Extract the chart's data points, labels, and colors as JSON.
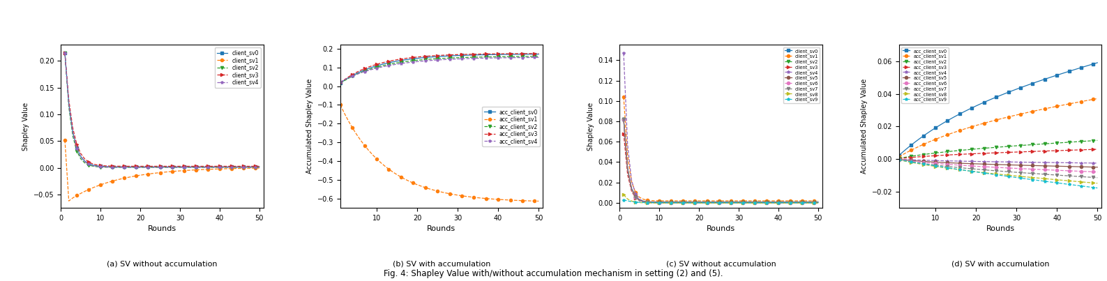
{
  "fig_width": 15.87,
  "fig_height": 4.03,
  "fig_caption": "Fig. 4: Shapley Value with/without accumulation mechanism in setting (2) and (5).",
  "panel_a": {
    "ylabel": "Shapley Value",
    "xlabel": "Rounds",
    "ylim": [
      -0.075,
      0.23
    ],
    "xlim": [
      0,
      51
    ],
    "clients": [
      "client_sv0",
      "client_sv1",
      "client_sv2",
      "client_sv3",
      "client_sv4"
    ],
    "colors": [
      "#1f77b4",
      "#ff7f0e",
      "#2ca02c",
      "#d62728",
      "#9467bd"
    ],
    "markers": [
      "s",
      "o",
      "v",
      ">",
      "*"
    ],
    "linestyles": [
      "-",
      "--",
      "--",
      "--",
      "--"
    ],
    "label": "(a) SV without accumulation"
  },
  "panel_b": {
    "ylabel": "Accumulated Shapley Value",
    "xlabel": "Rounds",
    "ylim": [
      -0.65,
      0.22
    ],
    "xlim": [
      1,
      51
    ],
    "clients": [
      "acc_client_sv0",
      "acc_client_sv1",
      "acc_client_sv2",
      "acc_client_sv3",
      "acc_client_sv4"
    ],
    "colors": [
      "#1f77b4",
      "#ff7f0e",
      "#2ca02c",
      "#d62728",
      "#9467bd"
    ],
    "markers": [
      "s",
      "o",
      "v",
      ">",
      "*"
    ],
    "linestyles": [
      "-",
      "--",
      "--",
      "--",
      "--"
    ],
    "label": "(b) SV with accumulation"
  },
  "panel_c": {
    "ylabel": "Shapley Value",
    "xlabel": "Rounds",
    "ylim": [
      -0.005,
      0.155
    ],
    "xlim": [
      0,
      51
    ],
    "clients": [
      "client_sv0",
      "client_sv1",
      "client_sv2",
      "client_sv3",
      "client_sv4",
      "client_sv5",
      "client_sv6",
      "client_sv7",
      "client_sv8",
      "client_sv9"
    ],
    "colors": [
      "#1f77b4",
      "#ff7f0e",
      "#2ca02c",
      "#d62728",
      "#9467bd",
      "#8c564b",
      "#e377c2",
      "#7f7f7f",
      "#bcbd22",
      "#17becf"
    ],
    "markers": [
      "s",
      "o",
      "v",
      ">",
      "*",
      "o",
      "o",
      "v",
      ">",
      "*"
    ],
    "linestyles": [
      "-",
      "--",
      "--",
      "--",
      "--",
      "-",
      "--",
      "--",
      "--",
      "--"
    ],
    "label": "(c) SV without accumulation"
  },
  "panel_d": {
    "ylabel": "Accumulated Shapley Value",
    "xlabel": "Rounds",
    "ylim": [
      -0.03,
      0.07
    ],
    "xlim": [
      1,
      51
    ],
    "clients": [
      "acc_client_sv0",
      "acc_client_sv1",
      "acc_client_sv2",
      "acc_client_sv3",
      "acc_client_sv4",
      "acc_client_sv5",
      "acc_client_sv6",
      "acc_client_sv7",
      "acc_client_sv8",
      "acc_client_sv9"
    ],
    "colors": [
      "#1f77b4",
      "#ff7f0e",
      "#2ca02c",
      "#d62728",
      "#9467bd",
      "#8c564b",
      "#e377c2",
      "#7f7f7f",
      "#bcbd22",
      "#17becf"
    ],
    "markers": [
      "s",
      "o",
      "v",
      ">",
      "*",
      "o",
      "o",
      "v",
      ">",
      "*"
    ],
    "linestyles": [
      "-",
      "--",
      "--",
      "--",
      "--",
      "-",
      "--",
      "--",
      "--",
      "--"
    ],
    "label": "(d) SV with accumulation"
  }
}
